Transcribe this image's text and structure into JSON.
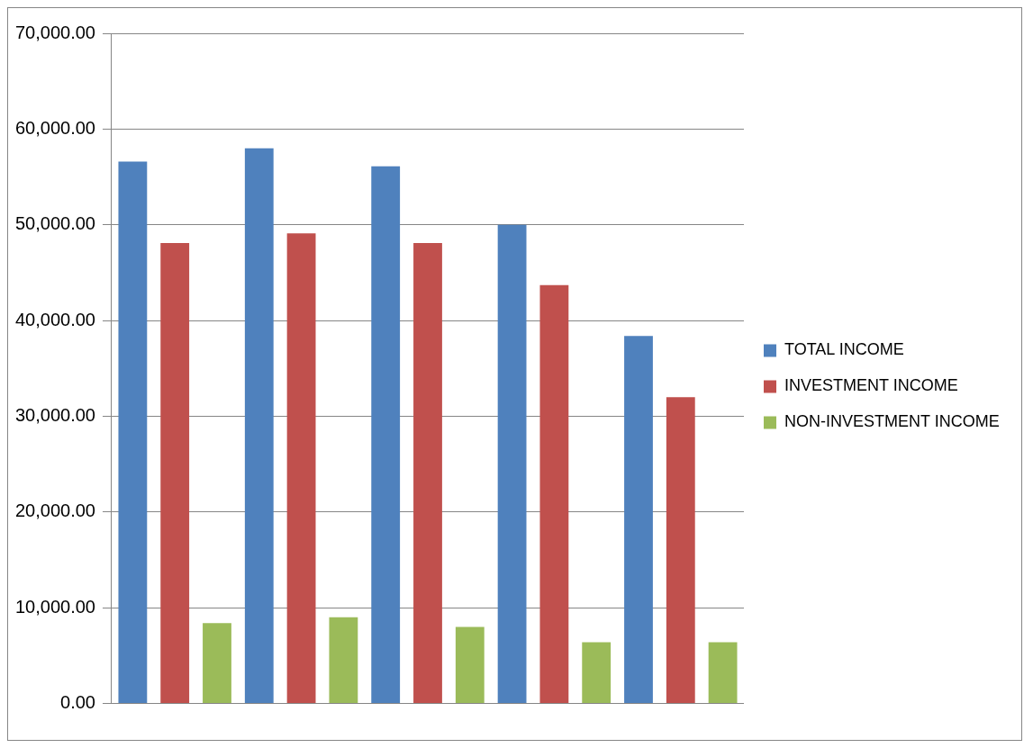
{
  "chart_data": {
    "type": "bar",
    "categories": [
      null,
      null,
      null,
      null,
      null
    ],
    "series": [
      {
        "name": "TOTAL INCOME",
        "color": "#4f81bd",
        "values": [
          56600,
          58000,
          56100,
          50000,
          38400
        ]
      },
      {
        "name": "INVESTMENT INCOME",
        "color": "#c0504d",
        "values": [
          48100,
          49100,
          48100,
          43700,
          32000
        ]
      },
      {
        "name": "NON-INVESTMENT INCOME",
        "color": "#9bbb59",
        "values": [
          8400,
          9000,
          8000,
          6400,
          6400
        ]
      }
    ],
    "ylim": [
      0,
      70000
    ],
    "yticks": [
      {
        "value": 0,
        "label": "0.00"
      },
      {
        "value": 10000,
        "label": "10,000.00"
      },
      {
        "value": 20000,
        "label": "20,000.00"
      },
      {
        "value": 30000,
        "label": "30,000.00"
      },
      {
        "value": 40000,
        "label": "40,000.00"
      },
      {
        "value": 50000,
        "label": "50,000.00"
      },
      {
        "value": 60000,
        "label": "60,000.00"
      },
      {
        "value": 70000,
        "label": "70,000.00"
      }
    ],
    "grid": "y",
    "legend": "right"
  }
}
